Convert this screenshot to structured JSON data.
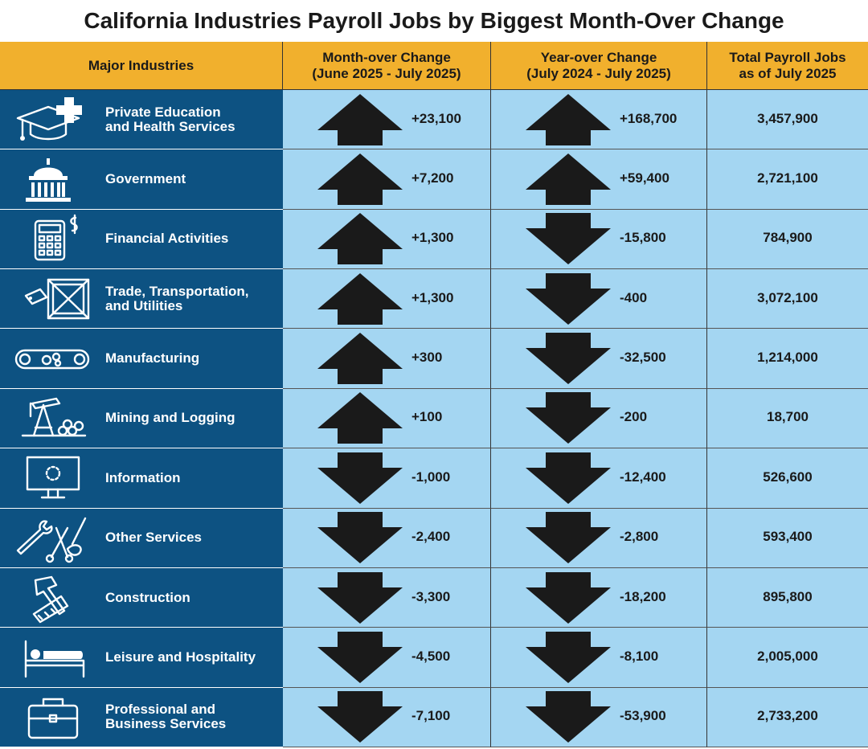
{
  "title": "California Industries Payroll Jobs by Biggest Month-Over Change",
  "headers": {
    "industries": "Major Industries",
    "mom_line1": "Month-over Change",
    "mom_line2": "(June 2025 - July 2025)",
    "yoy_line1": "Year-over Change",
    "yoy_line2": "(July 2024 - July 2025)",
    "total_line1": "Total Payroll Jobs",
    "total_line2": "as of July 2025"
  },
  "colors": {
    "header_bg": "#f1b02d",
    "industry_bg": "#0d5282",
    "cell_bg": "#a4d6f2",
    "arrow": "#1a1a1a"
  },
  "chart_data": {
    "type": "table",
    "title": "California Industries Payroll Jobs by Biggest Month-Over Change",
    "columns": [
      "Major Industries",
      "Month-over Change (June 2025 - July 2025)",
      "Year-over Change (July 2024 - July 2025)",
      "Total Payroll Jobs as of July 2025"
    ],
    "rows": [
      {
        "line1": "Private Education",
        "line2": "and Health Services",
        "icon": "graduation-cap-medical-icon",
        "mom": "+23,100",
        "mom_value": 23100,
        "yoy": "+168,700",
        "yoy_value": 168700,
        "total": "3,457,900"
      },
      {
        "line1": "Government",
        "line2": "",
        "icon": "capitol-building-icon",
        "mom": "+7,200",
        "mom_value": 7200,
        "yoy": "+59,400",
        "yoy_value": 59400,
        "total": "2,721,100"
      },
      {
        "line1": "Financial Activities",
        "line2": "",
        "icon": "calculator-dollar-icon",
        "mom": "+1,300",
        "mom_value": 1300,
        "yoy": "-15,800",
        "yoy_value": -15800,
        "total": "784,900"
      },
      {
        "line1": "Trade, Transportation,",
        "line2": "and Utilities",
        "icon": "shipping-crate-icon",
        "mom": "+1,300",
        "mom_value": 1300,
        "yoy": "-400",
        "yoy_value": -400,
        "total": "3,072,100"
      },
      {
        "line1": "Manufacturing",
        "line2": "",
        "icon": "conveyor-gears-icon",
        "mom": "+300",
        "mom_value": 300,
        "yoy": "-32,500",
        "yoy_value": -32500,
        "total": "1,214,000"
      },
      {
        "line1": "Mining and Logging",
        "line2": "",
        "icon": "oil-pump-logs-icon",
        "mom": "+100",
        "mom_value": 100,
        "yoy": "-200",
        "yoy_value": -200,
        "total": "18,700"
      },
      {
        "line1": "Information",
        "line2": "",
        "icon": "computer-monitor-icon",
        "mom": "-1,000",
        "mom_value": -1000,
        "yoy": "-12,400",
        "yoy_value": -12400,
        "total": "526,600"
      },
      {
        "line1": "Other Services",
        "line2": "",
        "icon": "wrench-scissors-icon",
        "mom": "-2,400",
        "mom_value": -2400,
        "yoy": "-2,800",
        "yoy_value": -2800,
        "total": "593,400"
      },
      {
        "line1": "Construction",
        "line2": "",
        "icon": "hammer-saw-icon",
        "mom": "-3,300",
        "mom_value": -3300,
        "yoy": "-18,200",
        "yoy_value": -18200,
        "total": "895,800"
      },
      {
        "line1": "Leisure and Hospitality",
        "line2": "",
        "icon": "bed-icon",
        "mom": "-4,500",
        "mom_value": -4500,
        "yoy": "-8,100",
        "yoy_value": -8100,
        "total": "2,005,000"
      },
      {
        "line1": "Professional and",
        "line2": "Business Services",
        "icon": "briefcase-icon",
        "mom": "-7,100",
        "mom_value": -7100,
        "yoy": "-53,900",
        "yoy_value": -53900,
        "total": "2,733,200"
      }
    ]
  }
}
